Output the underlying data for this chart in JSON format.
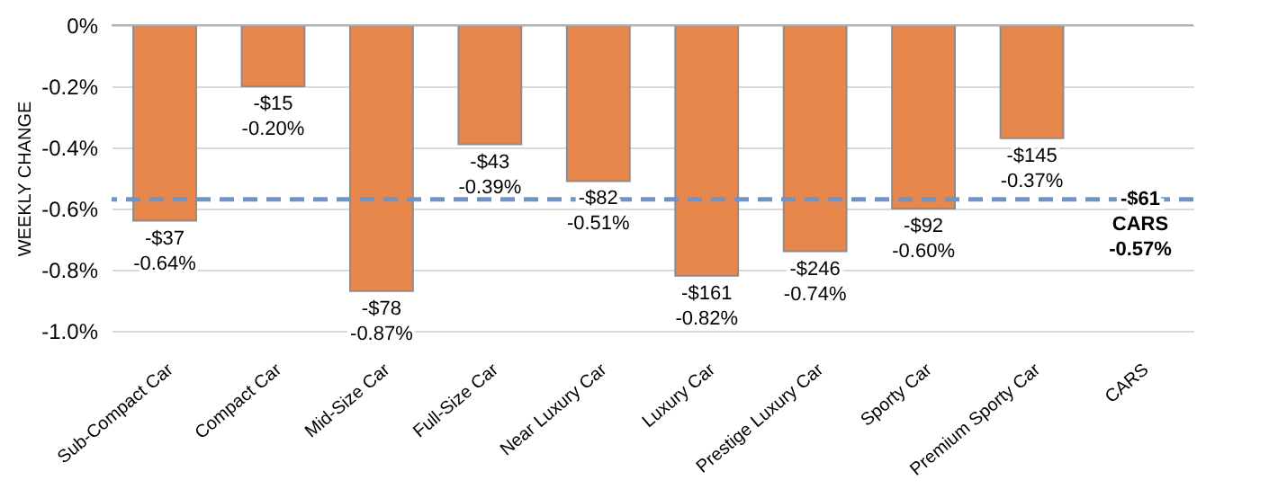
{
  "chart_data": {
    "type": "bar",
    "ylabel": "WEEKLY CHANGE",
    "categories": [
      "Sub-Compact Car",
      "Compact Car",
      "Mid-Size Car",
      "Full-Size Car",
      "Near Luxury Car",
      "Luxury Car",
      "Prestige Luxury Car",
      "Sporty Car",
      "Premium Sporty Car",
      "CARS"
    ],
    "values": [
      -0.64,
      -0.2,
      -0.87,
      -0.39,
      -0.51,
      -0.82,
      -0.74,
      -0.6,
      -0.37,
      null
    ],
    "value_labels": [
      "-$37\n-0.64%",
      "-$15\n-0.20%",
      "-$78\n-0.87%",
      "-$43\n-0.39%",
      "-$82\n-0.51%",
      "-$161\n-0.82%",
      "-$246\n-0.74%",
      "-$92\n-0.60%",
      "-$145\n-0.37%",
      null
    ],
    "color": "#e8874c",
    "ylim": [
      -1.0,
      0
    ],
    "yticks": [
      {
        "value": -1.0,
        "label": "-1.0%"
      },
      {
        "value": -0.8,
        "label": "-0.8%"
      },
      {
        "value": -0.6,
        "label": "-0.6%"
      },
      {
        "value": -0.4,
        "label": "-0.4%"
      },
      {
        "value": -0.2,
        "label": "-0.2%"
      },
      {
        "value": 0,
        "label": "0%"
      }
    ],
    "grid": "y",
    "ref_lines": [
      {
        "axis": "y",
        "value": -0.57,
        "label": "-$61\nCARS\n-0.57%",
        "color": "#6f95c8",
        "line_style": "dashed"
      }
    ]
  }
}
